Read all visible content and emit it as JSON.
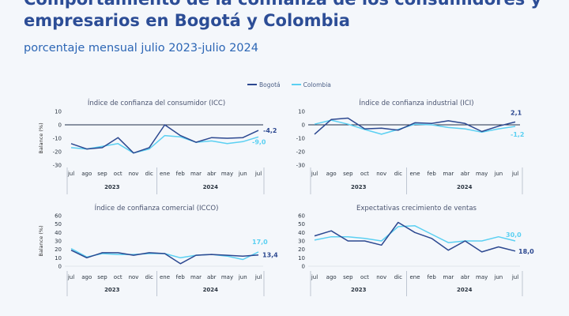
{
  "header": {
    "title": "Comportamiento de la confianza de los consumidores y empresarios en Bogotá y Colombia",
    "subtitle": "porcentaje mensual julio 2023-julio 2024"
  },
  "legend": [
    {
      "name": "Bogotá",
      "color": "#2c4890"
    },
    {
      "name": "Colombia",
      "color": "#5bd0f2"
    }
  ],
  "colors": {
    "bogota": "#2c4890",
    "colombia": "#5bd0f2",
    "title": "#2c4d96",
    "subtitle": "#2c66b5"
  },
  "chart_data": [
    {
      "type": "line",
      "title": "Índice de confianza del consumidor (ICC)",
      "ylabel": "Balance (%)",
      "ylim": [
        -30,
        10
      ],
      "yticks": [
        10,
        0,
        -10,
        -20,
        -30
      ],
      "categories": [
        "jul",
        "ago",
        "sep",
        "oct",
        "nov",
        "dic",
        "ene",
        "feb",
        "mar",
        "abr",
        "may",
        "jun",
        "jul"
      ],
      "year_labels": [
        "2023",
        "2024"
      ],
      "series": [
        {
          "name": "Bogotá",
          "values": [
            -14,
            -18,
            -17,
            -9.5,
            -21,
            -17,
            0,
            -8,
            -13,
            -9.5,
            -10,
            -9.5,
            -4.2
          ],
          "end_label": "-4,2"
        },
        {
          "name": "Colombia",
          "values": [
            -17,
            -18,
            -16,
            -14,
            -21,
            -18,
            -8,
            -9,
            -13,
            -12,
            -14,
            -12.5,
            -9.0
          ],
          "end_label": "-9,0"
        }
      ]
    },
    {
      "type": "line",
      "title": "Índice de confianza industrial (ICI)",
      "ylabel": "",
      "ylim": [
        -30,
        10
      ],
      "yticks": [
        10,
        0,
        -10,
        -20,
        -30
      ],
      "categories": [
        "jul",
        "ago",
        "sep",
        "oct",
        "nov",
        "dic",
        "ene",
        "feb",
        "mar",
        "abr",
        "may",
        "jun",
        "jul"
      ],
      "year_labels": [
        "2023",
        "2024"
      ],
      "series": [
        {
          "name": "Bogotá",
          "values": [
            -7,
            4,
            5,
            -3,
            -2.5,
            -4,
            1.5,
            1,
            3,
            1,
            -5,
            -1,
            2.1
          ],
          "end_label": "2,1"
        },
        {
          "name": "Colombia",
          "values": [
            0.5,
            3.5,
            0.5,
            -3.5,
            -7,
            -3.5,
            0.5,
            0,
            -2,
            -3,
            -5.5,
            -3,
            -1.2
          ],
          "end_label": "-1,2"
        }
      ]
    },
    {
      "type": "line",
      "title": "Índice de confianza comercial (ICCO)",
      "ylabel": "Balance (%)",
      "ylim": [
        0,
        60
      ],
      "yticks": [
        60,
        50,
        40,
        30,
        20,
        10,
        0
      ],
      "categories": [
        "jul",
        "ago",
        "sep",
        "oct",
        "nov",
        "dic",
        "ene",
        "feb",
        "mar",
        "abr",
        "may",
        "jun",
        "jul"
      ],
      "year_labels": [
        "2023",
        "2024"
      ],
      "series": [
        {
          "name": "Bogotá",
          "values": [
            19,
            10,
            16,
            16,
            13,
            16,
            15,
            3,
            13,
            14,
            13,
            12,
            13.4
          ],
          "end_label": "13,4"
        },
        {
          "name": "Colombia",
          "values": [
            21,
            11,
            15,
            14,
            14,
            15,
            15,
            10,
            13,
            14,
            12,
            8,
            17.0
          ],
          "end_label": "17,0"
        }
      ]
    },
    {
      "type": "line",
      "title": "Expectativas crecimiento de ventas",
      "ylabel": "",
      "ylim": [
        0,
        60
      ],
      "yticks": [
        60,
        50,
        40,
        30,
        20,
        10,
        0
      ],
      "categories": [
        "jul",
        "ago",
        "sep",
        "oct",
        "nov",
        "dic",
        "ene",
        "feb",
        "mar",
        "abr",
        "may",
        "jun",
        "jul"
      ],
      "year_labels": [
        "2023",
        "2024"
      ],
      "series": [
        {
          "name": "Bogotá",
          "values": [
            36,
            42,
            30,
            30,
            25,
            52,
            40,
            33,
            19,
            30,
            17,
            23,
            18.0
          ],
          "end_label": "18,0"
        },
        {
          "name": "Colombia",
          "values": [
            31,
            35,
            35,
            33,
            30,
            47,
            48,
            38,
            28,
            30,
            30,
            35,
            30.0
          ],
          "end_label": "30,0"
        }
      ]
    }
  ]
}
